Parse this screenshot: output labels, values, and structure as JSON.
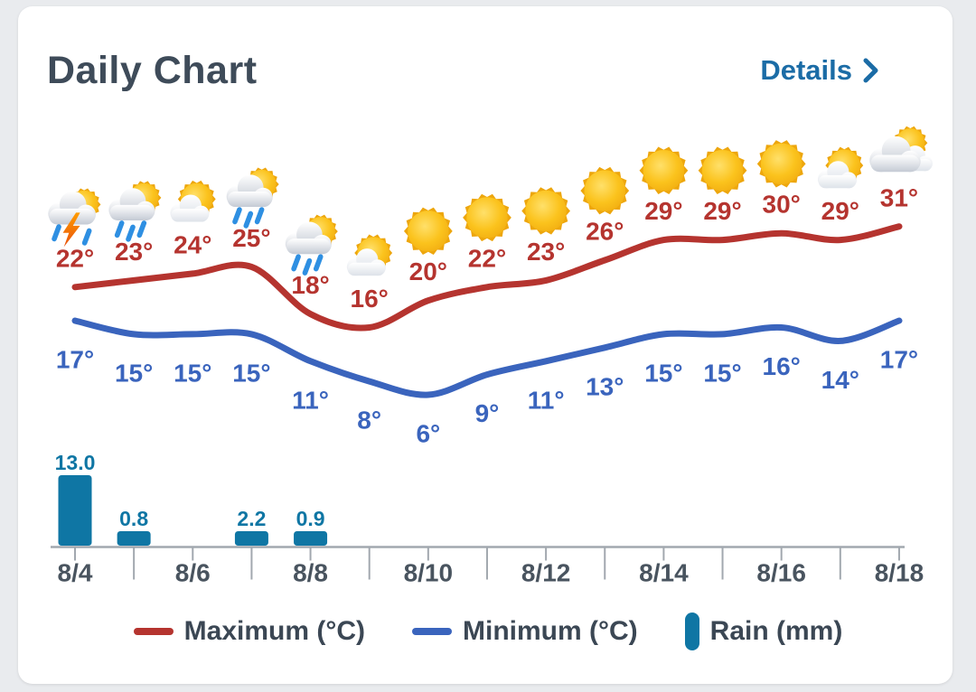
{
  "background_color": "#e9ebee",
  "card": {
    "title": "Daily Chart",
    "details": {
      "label": "Details",
      "color": "#1b6ca6"
    }
  },
  "legend": {
    "position": "bottom",
    "items": [
      {
        "label": "Maximum (°C)",
        "swatch": "line",
        "color": "#b5342f"
      },
      {
        "label": "Minimum (°C)",
        "swatch": "line",
        "color": "#3a64bd"
      },
      {
        "label": "Rain (mm)",
        "swatch": "bar",
        "color": "#0f76a4"
      }
    ]
  },
  "chart_data": {
    "type": "line+bar",
    "title": "Daily Chart",
    "grid": false,
    "legend_position": "bottom",
    "x": [
      "8/4",
      "8/5",
      "8/6",
      "8/7",
      "8/8",
      "8/9",
      "8/10",
      "8/11",
      "8/12",
      "8/13",
      "8/14",
      "8/15",
      "8/16",
      "8/17",
      "8/18"
    ],
    "x_axis_labels": [
      "8/4",
      "8/6",
      "8/8",
      "8/10",
      "8/12",
      "8/14",
      "8/16",
      "8/18"
    ],
    "icons": [
      "storm",
      "rain-sun",
      "partly-cloudy",
      "rain-sun",
      "rain-sun",
      "partly-cloudy",
      "sunny",
      "sunny",
      "sunny",
      "sunny",
      "sunny",
      "sunny",
      "sunny",
      "partly-cloudy",
      "mostly-cloudy"
    ],
    "series": [
      {
        "name": "Maximum (°C)",
        "type": "line",
        "color": "#b5342f",
        "unit": "°",
        "values": [
          22,
          23,
          24,
          25,
          18,
          16,
          20,
          22,
          23,
          26,
          29,
          29,
          30,
          29,
          31
        ]
      },
      {
        "name": "Minimum (°C)",
        "type": "line",
        "color": "#3a64bd",
        "unit": "°",
        "values": [
          17,
          15,
          15,
          15,
          11,
          8,
          6,
          9,
          11,
          13,
          15,
          15,
          16,
          14,
          17
        ]
      },
      {
        "name": "Rain (mm)",
        "type": "bar",
        "color": "#0f76a4",
        "unit": "mm",
        "values": [
          13.0,
          0.8,
          0,
          2.2,
          0.9,
          0,
          0,
          0,
          0,
          0,
          0,
          0,
          0,
          0,
          0
        ]
      }
    ],
    "axis_color": "#a2a8af",
    "date_label_color": "#49545f"
  }
}
